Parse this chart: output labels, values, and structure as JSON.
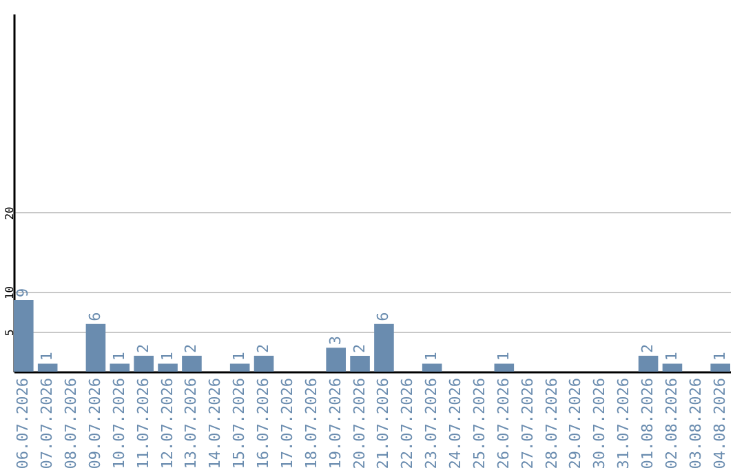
{
  "chart_data": {
    "type": "bar",
    "categories": [
      "06.07.2026",
      "07.07.2026",
      "08.07.2026",
      "09.07.2026",
      "10.07.2026",
      "11.07.2026",
      "12.07.2026",
      "13.07.2026",
      "14.07.2026",
      "15.07.2026",
      "16.07.2026",
      "17.07.2026",
      "18.07.2026",
      "19.07.2026",
      "20.07.2026",
      "21.07.2026",
      "22.07.2026",
      "23.07.2026",
      "24.07.2026",
      "25.07.2026",
      "26.07.2026",
      "27.07.2026",
      "28.07.2026",
      "29.07.2026",
      "30.07.2026",
      "31.07.2026",
      "01.08.2026",
      "02.08.2026",
      "03.08.2026",
      "04.08.2026"
    ],
    "values": [
      9,
      1,
      0,
      6,
      1,
      2,
      1,
      2,
      0,
      1,
      2,
      0,
      0,
      3,
      2,
      6,
      0,
      1,
      0,
      0,
      1,
      0,
      0,
      0,
      0,
      0,
      2,
      1,
      0,
      1
    ],
    "value_labels": [
      "9",
      "1",
      null,
      "6",
      "1",
      "2",
      "1",
      "2",
      null,
      "1",
      "2",
      null,
      null,
      "3",
      "2",
      "6",
      null,
      "1",
      null,
      null,
      "1",
      null,
      null,
      null,
      null,
      null,
      "2",
      "1",
      null,
      "1"
    ],
    "color": "#6a8caf",
    "ylim": [
      0,
      45
    ],
    "yticks": [
      5,
      10,
      20
    ],
    "grid": "y"
  }
}
